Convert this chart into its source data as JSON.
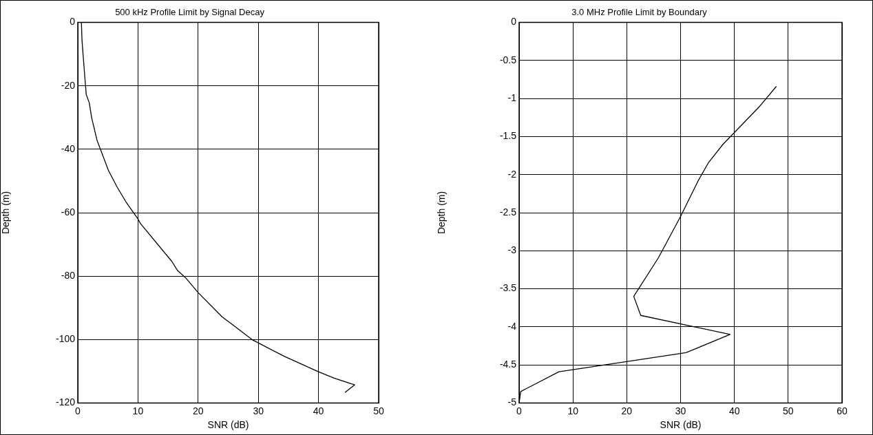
{
  "chart_data": [
    {
      "type": "line",
      "title": "500 kHz Profile Limit by Signal Decay",
      "xlabel": "SNR (dB)",
      "ylabel": "Depth (m)",
      "series": [
        {
          "color": "#000000",
          "x": [
            0.6,
            0.7,
            0.9,
            1.2,
            1.4,
            1.9,
            2.3,
            3.2,
            3.9,
            5.1,
            6.5,
            8.1,
            10,
            10.4,
            15.6,
            16.6,
            17.9,
            20,
            24,
            25.5,
            29.1,
            34.3,
            39.8,
            42.6,
            46,
            44.4
          ],
          "values": [
            0,
            -5.6,
            -10.7,
            -18,
            -22.7,
            -25.3,
            -30,
            -37.2,
            -40.7,
            -46.7,
            -51.8,
            -56.9,
            -62,
            -63.4,
            -75.3,
            -78.3,
            -80.5,
            -85.2,
            -92.9,
            -95,
            -100.2,
            -105.3,
            -110,
            -112.2,
            -114.3,
            -116.7
          ]
        }
      ],
      "xlim": [
        0,
        50
      ],
      "xticks": [
        0,
        10,
        20,
        30,
        40,
        50
      ],
      "ylim": [
        -120,
        0
      ],
      "yticks": [
        -120,
        -100,
        -80,
        -60,
        -40,
        -20,
        0
      ],
      "grid": true,
      "legend": false,
      "marker": "none",
      "line_style": "solid"
    },
    {
      "type": "line",
      "title": "3.0 MHz Profile Limit by Boundary",
      "xlabel": "SNR (dB)",
      "ylabel": "Depth (m)",
      "series": [
        {
          "color": "#000000",
          "x": [
            47.8,
            44.6,
            40.1,
            37.9,
            35.2,
            33.2,
            30,
            25.9,
            21.3,
            22.6,
            39.2,
            31,
            7.4,
            0.3,
            0
          ],
          "values": [
            -0.84,
            -1.11,
            -1.44,
            -1.6,
            -1.84,
            -2.09,
            -2.55,
            -3.09,
            -3.6,
            -3.85,
            -4.1,
            -4.34,
            -4.59,
            -4.85,
            -5
          ]
        }
      ],
      "xlim": [
        0,
        60
      ],
      "xticks": [
        0,
        10,
        20,
        30,
        40,
        50,
        60
      ],
      "ylim": [
        -5,
        0
      ],
      "yticks": [
        -5,
        -4.5,
        -4,
        -3.5,
        -3,
        -2.5,
        -2,
        -1.5,
        -1,
        -0.5,
        0
      ],
      "grid": true,
      "legend": false,
      "marker": "none",
      "line_style": "solid"
    }
  ]
}
